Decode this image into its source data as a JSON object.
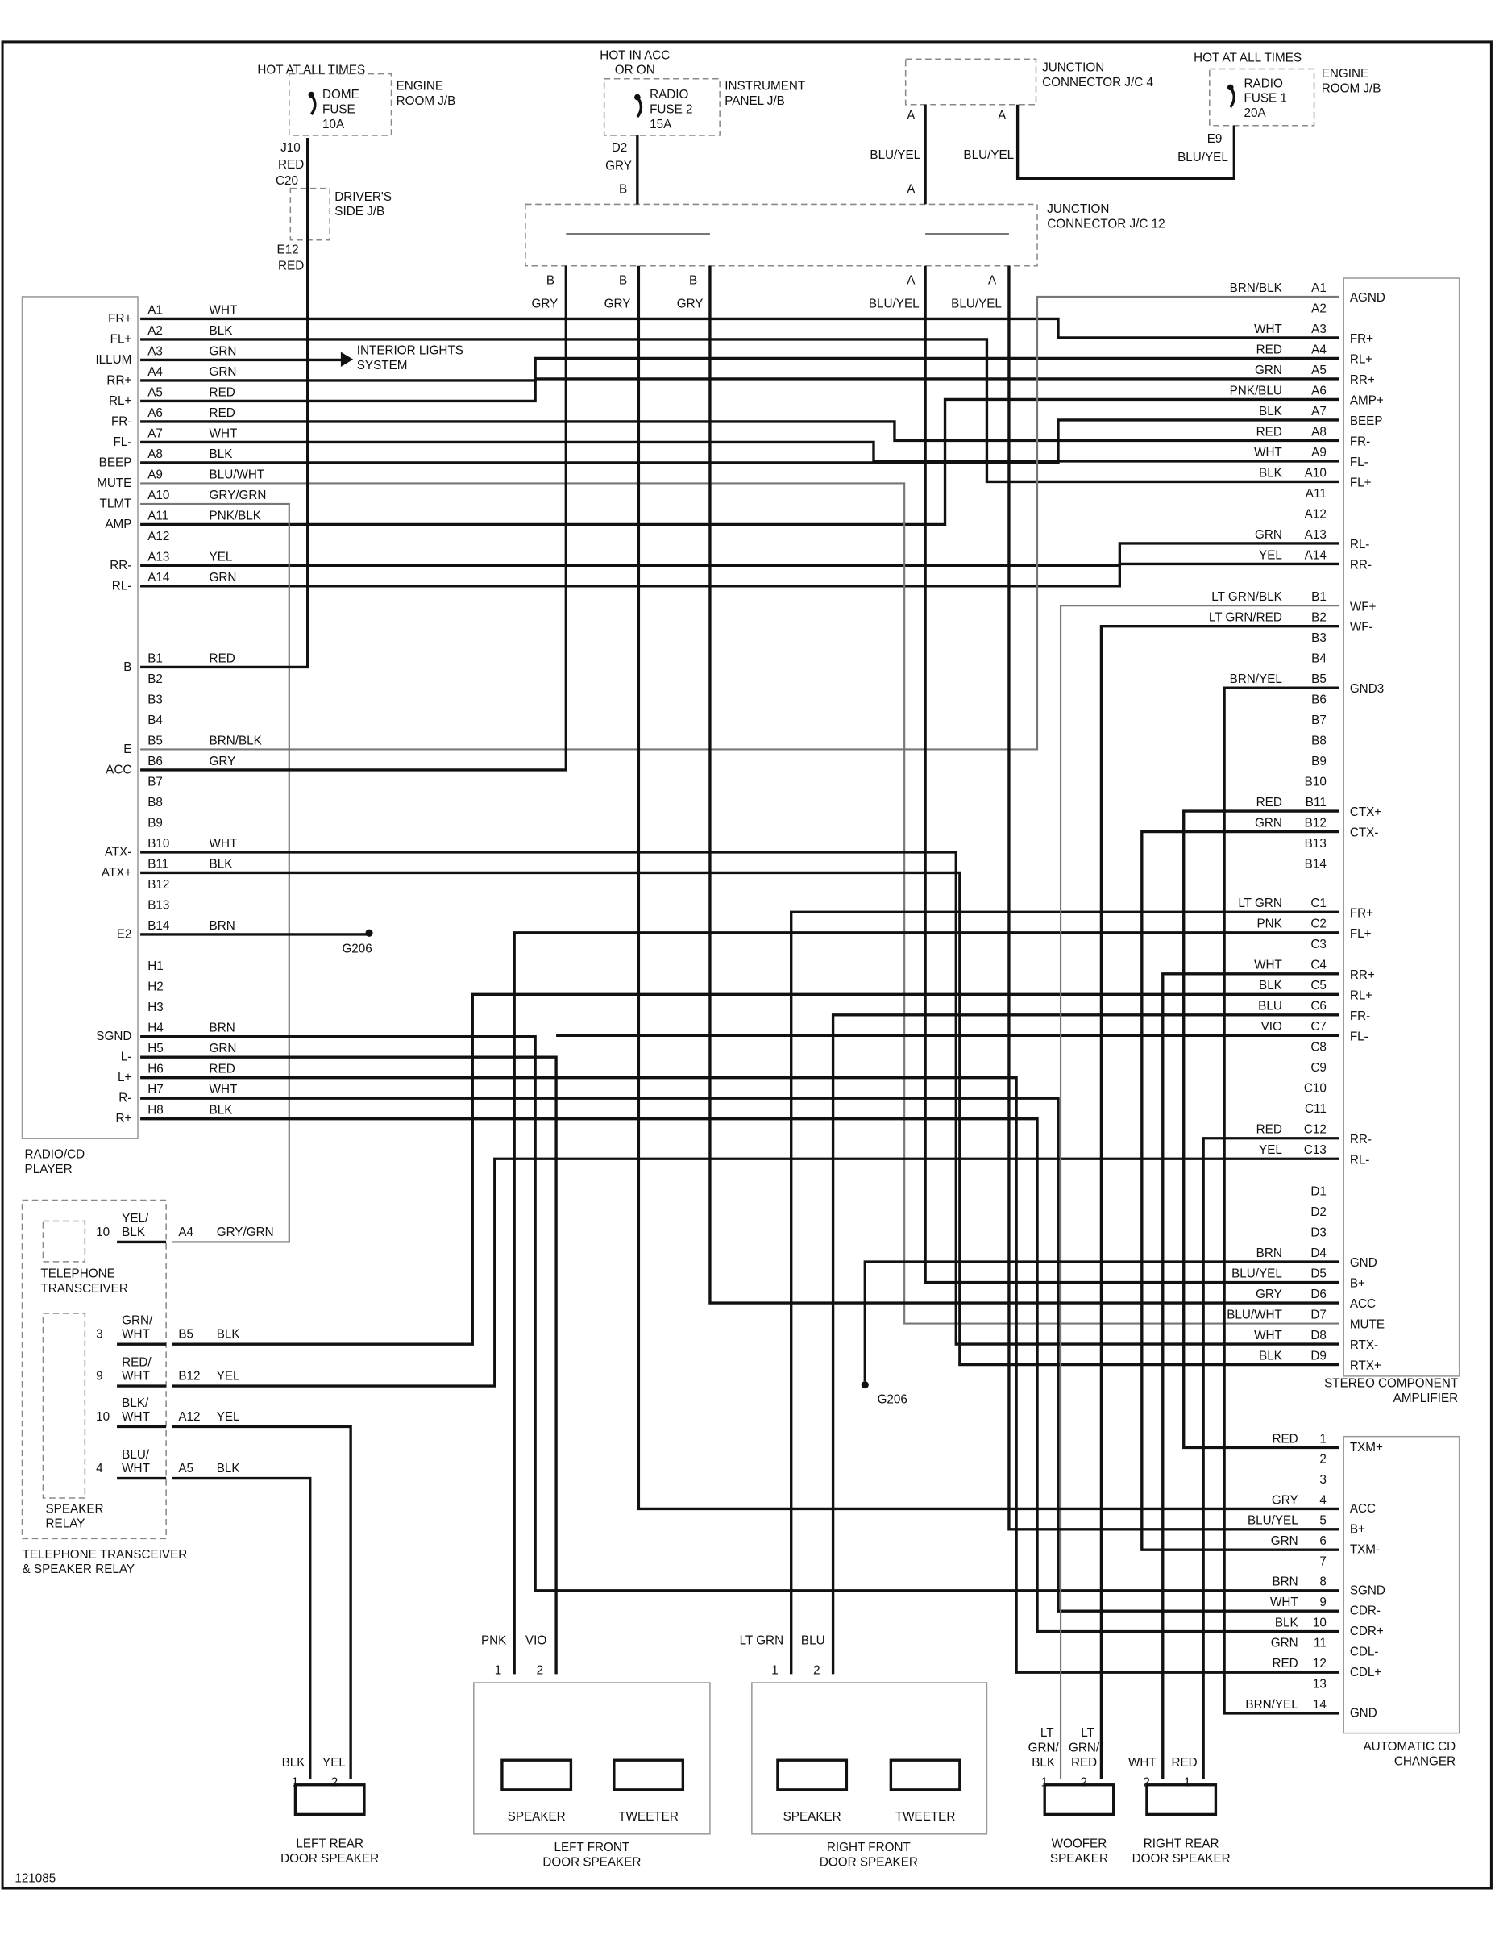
{
  "figure_id": "121085",
  "top": {
    "dome": {
      "hot": "HOT AT ALL TIMES",
      "fuse": [
        "DOME",
        "FUSE",
        "10A"
      ],
      "jb": [
        "ENGINE",
        "ROOM J/B"
      ],
      "pin_top": "J10",
      "wire1": "RED",
      "pin_c": "C20",
      "djb": [
        "DRIVER'S",
        "SIDE J/B"
      ],
      "pin_e": "E12",
      "wire2": "RED"
    },
    "radio_fuse2": {
      "hot": [
        "HOT IN ACC",
        "OR ON"
      ],
      "fuse": [
        "RADIO",
        "FUSE 2",
        "15A"
      ],
      "jb": [
        "INSTRUMENT",
        "PANEL J/B"
      ],
      "pin": "D2",
      "wire": "GRY",
      "pin_b": "B"
    },
    "jc4": {
      "label": [
        "JUNCTION",
        "CONNECTOR J/C 4"
      ],
      "pin_a1": "A",
      "pin_a2": "A",
      "wire1": "BLU/YEL",
      "wire2": "BLU/YEL",
      "pin_a3": "A"
    },
    "radio_fuse1": {
      "hot": "HOT AT ALL TIMES",
      "fuse": [
        "RADIO",
        "FUSE 1",
        "20A"
      ],
      "jb": [
        "ENGINE",
        "ROOM J/B"
      ],
      "pin": "E9",
      "wire": "BLU/YEL"
    },
    "jc12": {
      "label": [
        "JUNCTION",
        "CONNECTOR J/C 12"
      ],
      "pins": [
        "B",
        "B",
        "B",
        "A",
        "A"
      ],
      "wires": [
        "GRY",
        "GRY",
        "GRY",
        "BLU/YEL",
        "BLU/YEL"
      ]
    }
  },
  "interior_lights": [
    "INTERIOR LIGHTS",
    "SYSTEM"
  ],
  "grounds": [
    "G206",
    "G206"
  ],
  "radio": {
    "title": [
      "RADIO/CD",
      "PLAYER"
    ],
    "pins": [
      {
        "pin": "A1",
        "color": "WHT",
        "func": "FR+"
      },
      {
        "pin": "A2",
        "color": "BLK",
        "func": "FL+"
      },
      {
        "pin": "A3",
        "color": "GRN",
        "func": "ILLUM"
      },
      {
        "pin": "A4",
        "color": "GRN",
        "func": "RR+"
      },
      {
        "pin": "A5",
        "color": "RED",
        "func": "RL+"
      },
      {
        "pin": "A6",
        "color": "RED",
        "func": "FR-"
      },
      {
        "pin": "A7",
        "color": "WHT",
        "func": "FL-"
      },
      {
        "pin": "A8",
        "color": "BLK",
        "func": "BEEP"
      },
      {
        "pin": "A9",
        "color": "BLU/WHT",
        "func": "MUTE"
      },
      {
        "pin": "A10",
        "color": "GRY/GRN",
        "func": "TLMT"
      },
      {
        "pin": "A11",
        "color": "PNK/BLK",
        "func": "AMP"
      },
      {
        "pin": "A12",
        "color": "",
        "func": ""
      },
      {
        "pin": "A13",
        "color": "YEL",
        "func": "RR-"
      },
      {
        "pin": "A14",
        "color": "GRN",
        "func": "RL-"
      },
      {
        "pin": "B1",
        "color": "RED",
        "func": "B"
      },
      {
        "pin": "B2",
        "color": "",
        "func": ""
      },
      {
        "pin": "B3",
        "color": "",
        "func": ""
      },
      {
        "pin": "B4",
        "color": "",
        "func": ""
      },
      {
        "pin": "B5",
        "color": "BRN/BLK",
        "func": "E"
      },
      {
        "pin": "B6",
        "color": "GRY",
        "func": "ACC"
      },
      {
        "pin": "B7",
        "color": "",
        "func": ""
      },
      {
        "pin": "B8",
        "color": "",
        "func": ""
      },
      {
        "pin": "B9",
        "color": "",
        "func": ""
      },
      {
        "pin": "B10",
        "color": "WHT",
        "func": "ATX-"
      },
      {
        "pin": "B11",
        "color": "BLK",
        "func": "ATX+"
      },
      {
        "pin": "B12",
        "color": "",
        "func": ""
      },
      {
        "pin": "B13",
        "color": "",
        "func": ""
      },
      {
        "pin": "B14",
        "color": "BRN",
        "func": "E2"
      },
      {
        "pin": "H1",
        "color": "",
        "func": ""
      },
      {
        "pin": "H2",
        "color": "",
        "func": ""
      },
      {
        "pin": "H3",
        "color": "",
        "func": ""
      },
      {
        "pin": "H4",
        "color": "BRN",
        "func": "SGND"
      },
      {
        "pin": "H5",
        "color": "GRN",
        "func": "L-"
      },
      {
        "pin": "H6",
        "color": "RED",
        "func": "L+"
      },
      {
        "pin": "H7",
        "color": "WHT",
        "func": "R-"
      },
      {
        "pin": "H8",
        "color": "BLK",
        "func": "R+"
      }
    ]
  },
  "amplifier": {
    "title": [
      "STEREO COMPONENT",
      "AMPLIFIER"
    ],
    "pins": [
      {
        "pin": "A1",
        "color": "BRN/BLK",
        "func": "AGND"
      },
      {
        "pin": "A2",
        "color": "",
        "func": ""
      },
      {
        "pin": "A3",
        "color": "WHT",
        "func": "FR+"
      },
      {
        "pin": "A4",
        "color": "RED",
        "func": "RL+"
      },
      {
        "pin": "A5",
        "color": "GRN",
        "func": "RR+"
      },
      {
        "pin": "A6",
        "color": "PNK/BLU",
        "func": "AMP+"
      },
      {
        "pin": "A7",
        "color": "BLK",
        "func": "BEEP"
      },
      {
        "pin": "A8",
        "color": "RED",
        "func": "FR-"
      },
      {
        "pin": "A9",
        "color": "WHT",
        "func": "FL-"
      },
      {
        "pin": "A10",
        "color": "BLK",
        "func": "FL+"
      },
      {
        "pin": "A11",
        "color": "",
        "func": ""
      },
      {
        "pin": "A12",
        "color": "",
        "func": ""
      },
      {
        "pin": "A13",
        "color": "GRN",
        "func": "RL-"
      },
      {
        "pin": "A14",
        "color": "YEL",
        "func": "RR-"
      },
      {
        "pin": "B1",
        "color": "LT GRN/BLK",
        "func": "WF+"
      },
      {
        "pin": "B2",
        "color": "LT GRN/RED",
        "func": "WF-"
      },
      {
        "pin": "B3",
        "color": "",
        "func": ""
      },
      {
        "pin": "B4",
        "color": "",
        "func": ""
      },
      {
        "pin": "B5",
        "color": "BRN/YEL",
        "func": "GND3"
      },
      {
        "pin": "B6",
        "color": "",
        "func": ""
      },
      {
        "pin": "B7",
        "color": "",
        "func": ""
      },
      {
        "pin": "B8",
        "color": "",
        "func": ""
      },
      {
        "pin": "B9",
        "color": "",
        "func": ""
      },
      {
        "pin": "B10",
        "color": "",
        "func": ""
      },
      {
        "pin": "B11",
        "color": "RED",
        "func": "CTX+"
      },
      {
        "pin": "B12",
        "color": "GRN",
        "func": "CTX-"
      },
      {
        "pin": "B13",
        "color": "",
        "func": ""
      },
      {
        "pin": "B14",
        "color": "",
        "func": ""
      },
      {
        "pin": "C1",
        "color": "LT GRN",
        "func": "FR+"
      },
      {
        "pin": "C2",
        "color": "PNK",
        "func": "FL+"
      },
      {
        "pin": "C3",
        "color": "",
        "func": ""
      },
      {
        "pin": "C4",
        "color": "WHT",
        "func": "RR+"
      },
      {
        "pin": "C5",
        "color": "BLK",
        "func": "RL+"
      },
      {
        "pin": "C6",
        "color": "BLU",
        "func": "FR-"
      },
      {
        "pin": "C7",
        "color": "VIO",
        "func": "FL-"
      },
      {
        "pin": "C8",
        "color": "",
        "func": ""
      },
      {
        "pin": "C9",
        "color": "",
        "func": ""
      },
      {
        "pin": "C10",
        "color": "",
        "func": ""
      },
      {
        "pin": "C11",
        "color": "",
        "func": ""
      },
      {
        "pin": "C12",
        "color": "RED",
        "func": "RR-"
      },
      {
        "pin": "C13",
        "color": "YEL",
        "func": "RL-"
      },
      {
        "pin": "D1",
        "color": "",
        "func": ""
      },
      {
        "pin": "D2",
        "color": "",
        "func": ""
      },
      {
        "pin": "D3",
        "color": "",
        "func": ""
      },
      {
        "pin": "D4",
        "color": "BRN",
        "func": "GND"
      },
      {
        "pin": "D5",
        "color": "BLU/YEL",
        "func": "B+"
      },
      {
        "pin": "D6",
        "color": "GRY",
        "func": "ACC"
      },
      {
        "pin": "D7",
        "color": "BLU/WHT",
        "func": "MUTE"
      },
      {
        "pin": "D8",
        "color": "WHT",
        "func": "RTX-"
      },
      {
        "pin": "D9",
        "color": "BLK",
        "func": "RTX+"
      }
    ]
  },
  "changer": {
    "title": [
      "AUTOMATIC CD",
      "CHANGER"
    ],
    "pins": [
      {
        "pin": "1",
        "color": "RED",
        "func": "TXM+"
      },
      {
        "pin": "2",
        "color": "",
        "func": ""
      },
      {
        "pin": "3",
        "color": "",
        "func": ""
      },
      {
        "pin": "4",
        "color": "GRY",
        "func": "ACC"
      },
      {
        "pin": "5",
        "color": "BLU/YEL",
        "func": "B+"
      },
      {
        "pin": "6",
        "color": "GRN",
        "func": "TXM-"
      },
      {
        "pin": "7",
        "color": "",
        "func": ""
      },
      {
        "pin": "8",
        "color": "BRN",
        "func": "SGND"
      },
      {
        "pin": "9",
        "color": "WHT",
        "func": "CDR-"
      },
      {
        "pin": "10",
        "color": "BLK",
        "func": "CDR+"
      },
      {
        "pin": "11",
        "color": "GRN",
        "func": "CDL-"
      },
      {
        "pin": "12",
        "color": "RED",
        "func": "CDL+"
      },
      {
        "pin": "13",
        "color": "",
        "func": ""
      },
      {
        "pin": "14",
        "color": "BRN/YEL",
        "func": "GND"
      }
    ]
  },
  "telephone": {
    "transceiver": [
      "TELEPHONE",
      "TRANSCEIVER"
    ],
    "relay": [
      "SPEAKER",
      "RELAY"
    ],
    "group": [
      "TELEPHONE TRANSCEIVER",
      "& SPEAKER RELAY"
    ],
    "rows": [
      {
        "num": "10",
        "color1": "YEL/",
        "color2": "BLK",
        "pin": "A4",
        "wire": "GRY/GRN"
      },
      {
        "num": "3",
        "color1": "GRN/",
        "color2": "WHT",
        "pin": "B5",
        "wire": "BLK"
      },
      {
        "num": "9",
        "color1": "RED/",
        "color2": "WHT",
        "pin": "B12",
        "wire": "YEL"
      },
      {
        "num": "10",
        "color1": "BLK/",
        "color2": "WHT",
        "pin": "A12",
        "wire": "YEL"
      },
      {
        "num": "4",
        "color1": "BLU/",
        "color2": "WHT",
        "pin": "A5",
        "wire": "BLK"
      }
    ]
  },
  "speakers": {
    "left_rear": {
      "wires": [
        "BLK",
        "YEL"
      ],
      "pins": [
        "1",
        "2"
      ],
      "label": [
        "LEFT REAR",
        "DOOR SPEAKER"
      ]
    },
    "left_front": {
      "wires": [
        "PNK",
        "VIO"
      ],
      "pins": [
        "1",
        "2"
      ],
      "speaker": "SPEAKER",
      "tweeter": "TWEETER",
      "label": [
        "LEFT FRONT",
        "DOOR SPEAKER"
      ]
    },
    "right_front": {
      "wires": [
        "LT GRN",
        "BLU"
      ],
      "pins": [
        "1",
        "2"
      ],
      "speaker": "SPEAKER",
      "tweeter": "TWEETER",
      "label": [
        "RIGHT FRONT",
        "DOOR SPEAKER"
      ]
    },
    "woofer": {
      "wire1": [
        "LT",
        "GRN/",
        "BLK"
      ],
      "wire2": [
        "LT",
        "GRN/",
        "RED"
      ],
      "pins": [
        "1",
        "2"
      ],
      "label": [
        "WOOFER",
        "SPEAKER"
      ]
    },
    "right_rear": {
      "wires": [
        "WHT",
        "RED"
      ],
      "pins": [
        "2",
        "1"
      ],
      "label": [
        "RIGHT REAR",
        "DOOR SPEAKER"
      ]
    }
  }
}
